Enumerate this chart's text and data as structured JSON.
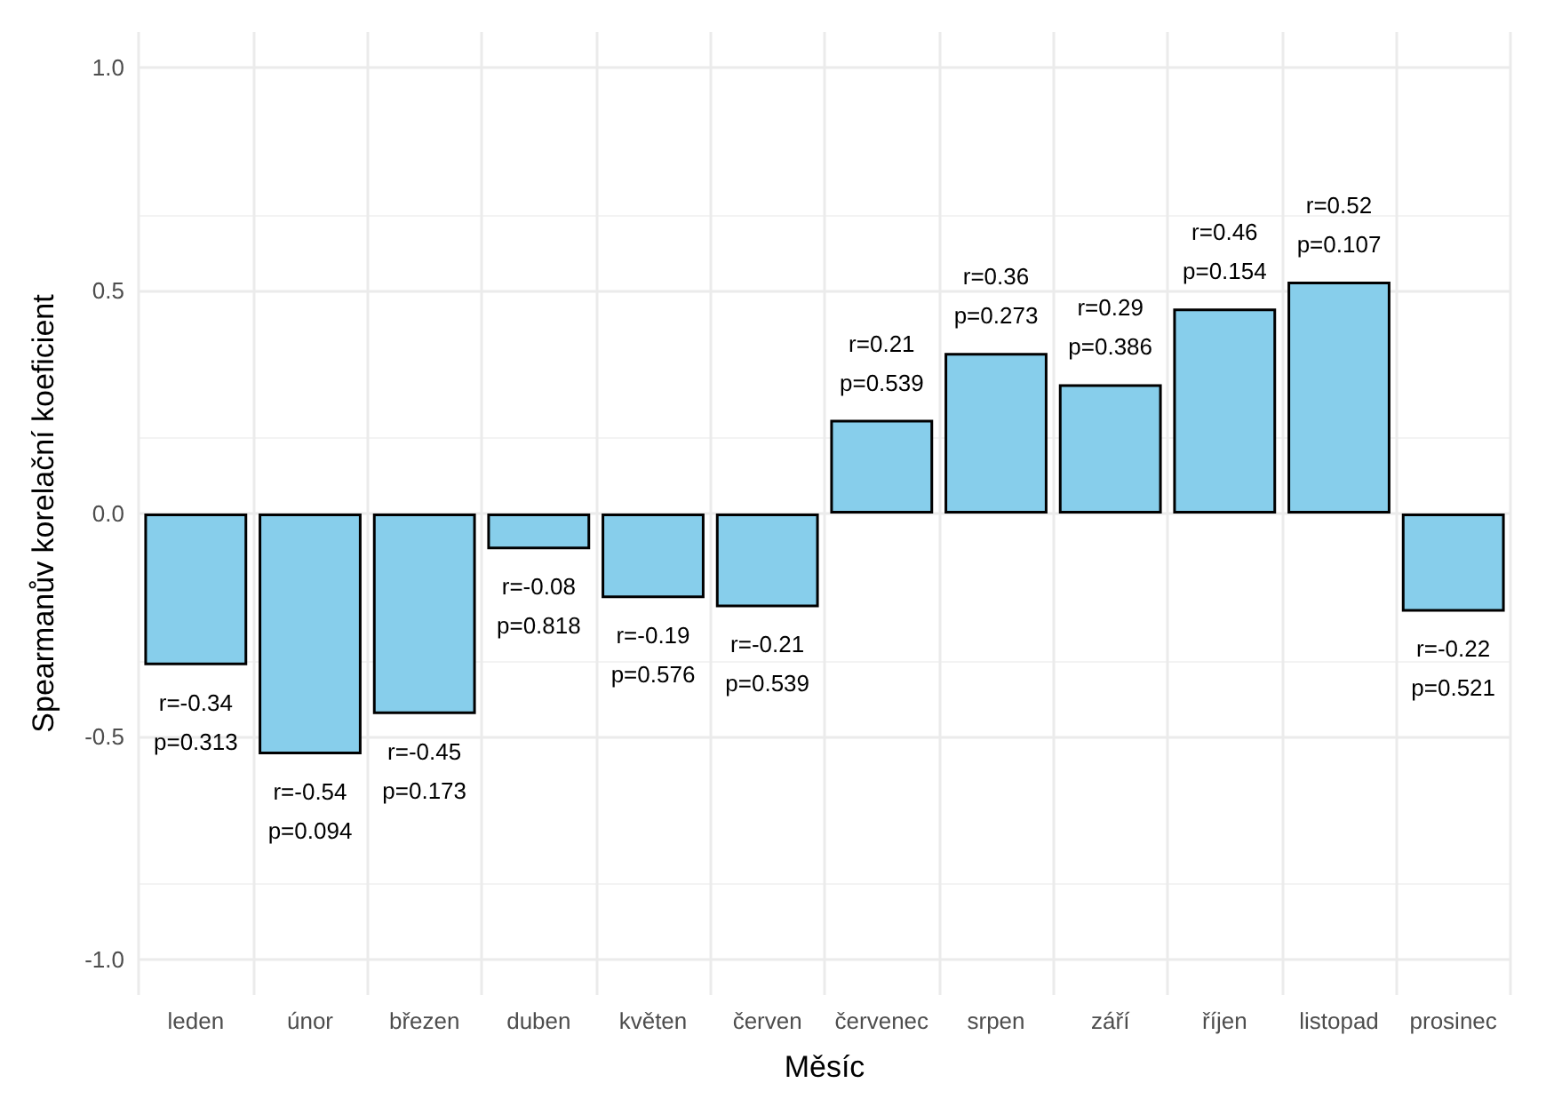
{
  "chart_data": {
    "type": "bar",
    "xlabel": "Měsíc",
    "ylabel": "Spearmanův korelační koeficient",
    "categories": [
      "leden",
      "únor",
      "březen",
      "duben",
      "květen",
      "červen",
      "červenec",
      "srpen",
      "září",
      "říjen",
      "listopad",
      "prosinec"
    ],
    "values": [
      -0.34,
      -0.54,
      -0.45,
      -0.08,
      -0.19,
      -0.21,
      0.21,
      0.36,
      0.29,
      0.46,
      0.52,
      -0.22
    ],
    "value_labels": [
      "r=-0.34\np=0.313",
      "r=-0.54\np=0.094",
      "r=-0.45\np=0.173",
      "r=-0.08\np=0.818",
      "r=-0.19\np=0.576",
      "r=-0.21\np=0.539",
      "r=0.21\np=0.539",
      "r=0.36\np=0.273",
      "r=0.29\np=0.386",
      "r=0.46\np=0.154",
      "r=0.52\np=0.107",
      "r=-0.22\np=0.521"
    ],
    "color": "#87ceeb",
    "ylim": [
      -1.08,
      1.08
    ],
    "yticks": [
      {
        "value": -1,
        "label": "-1.0"
      },
      {
        "value": -0.5,
        "label": "-0.5"
      },
      {
        "value": 0,
        "label": "0.0"
      },
      {
        "value": 0.5,
        "label": "0.5"
      },
      {
        "value": 1,
        "label": "1.0"
      }
    ],
    "grid": true
  }
}
